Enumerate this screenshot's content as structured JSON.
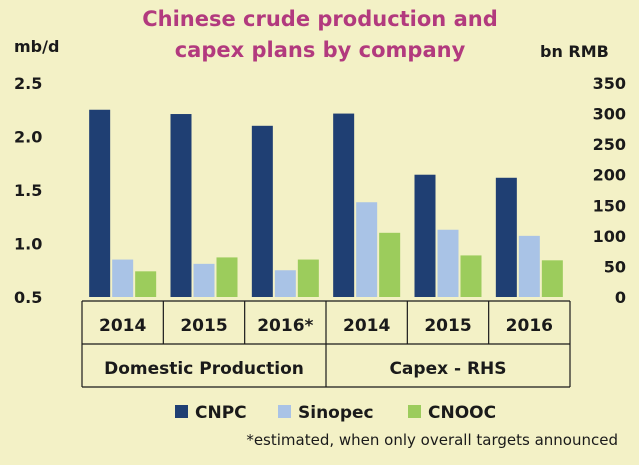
{
  "chart_data": {
    "type": "bar",
    "title": [
      "Chinese crude production and",
      "capex plans by company"
    ],
    "ylabel_left": "mb/d",
    "ylabel_right": "bn RMB",
    "left_axis": {
      "ylim": [
        0.5,
        2.5
      ],
      "ticks": [
        "0.5",
        "1.0",
        "1.5",
        "2.0",
        "2.5"
      ]
    },
    "right_axis": {
      "ylim": [
        0,
        350
      ],
      "ticks": [
        "0",
        "50",
        "100",
        "150",
        "200",
        "250",
        "300",
        "350"
      ]
    },
    "categories": [
      "2014",
      "2015",
      "2016*",
      "2014",
      "2015",
      "2016"
    ],
    "groups": [
      {
        "label": "Domestic Production",
        "axis": "left",
        "categories": [
          0,
          1,
          2
        ]
      },
      {
        "label": "Capex - RHS",
        "axis": "right",
        "categories": [
          3,
          4,
          5
        ]
      }
    ],
    "series": [
      {
        "name": "CNPC",
        "color": "#1f3f73",
        "values": [
          2.25,
          2.21,
          2.1,
          300,
          200,
          195
        ]
      },
      {
        "name": "Sinopec",
        "color": "#a9c3e6",
        "values": [
          0.85,
          0.81,
          0.75,
          155,
          110,
          100
        ]
      },
      {
        "name": "CNOOC",
        "color": "#9ccc5c",
        "values": [
          0.74,
          0.87,
          0.85,
          105,
          68,
          60
        ]
      }
    ],
    "footnote": "*estimated, when only overall targets announced",
    "legend": "bottom",
    "grid": false
  }
}
